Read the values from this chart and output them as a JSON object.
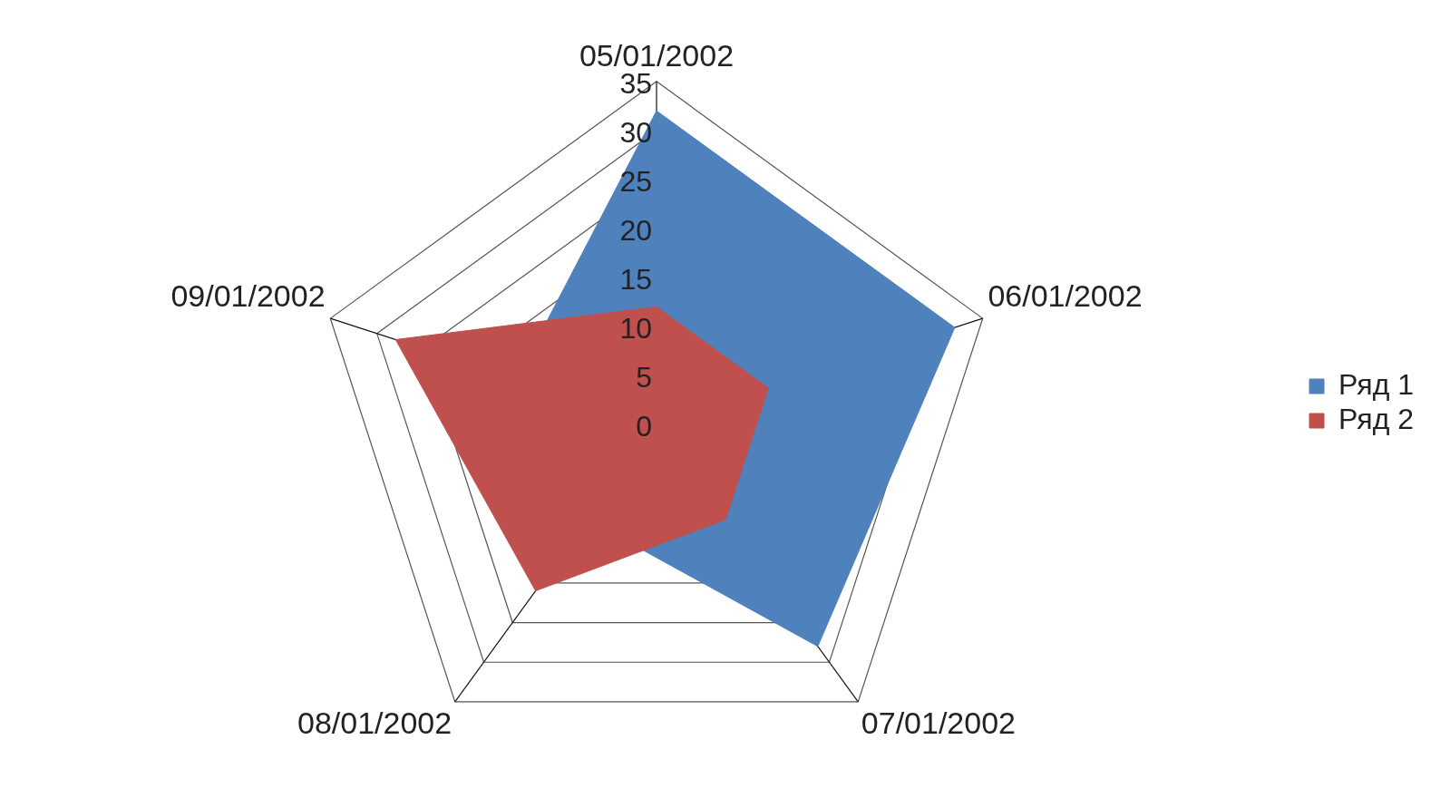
{
  "chart_data": {
    "type": "radar",
    "categories": [
      "05/01/2002",
      "06/01/2002",
      "07/01/2002",
      "08/01/2002",
      "09/01/2002"
    ],
    "series": [
      {
        "name": "Ряд 1",
        "color": "#4f81bd",
        "values": [
          32,
          32,
          28,
          12,
          15
        ]
      },
      {
        "name": "Ряд 2",
        "color": "#c0504d",
        "values": [
          12,
          12,
          12,
          21,
          28
        ]
      }
    ],
    "ylim": [
      0,
      35
    ],
    "yticks": [
      0,
      5,
      10,
      15,
      20,
      25,
      30,
      35
    ],
    "grid": true,
    "legend": "right",
    "marker": "none"
  }
}
